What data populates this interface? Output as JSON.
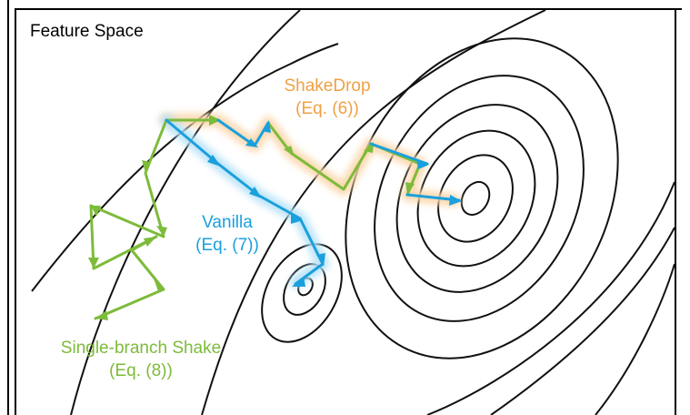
{
  "title": "Feature Space",
  "colors": {
    "shakedrop": "#F0A044",
    "vanilla": "#1AA0DD",
    "single_branch": "#7DBB3A",
    "contour": "#111111",
    "shakedrop_glow": "#FBD5A8",
    "vanilla_glow": "#B6E2F7"
  },
  "labels": {
    "shakedrop": {
      "line1": "ShakeDrop",
      "line2": "(Eq. (6))"
    },
    "vanilla": {
      "line1": "Vanilla",
      "line2": "(Eq. (7))"
    },
    "single_branch": {
      "line1": "Single-branch Shake",
      "line2": "(Eq. (8))"
    }
  }
}
